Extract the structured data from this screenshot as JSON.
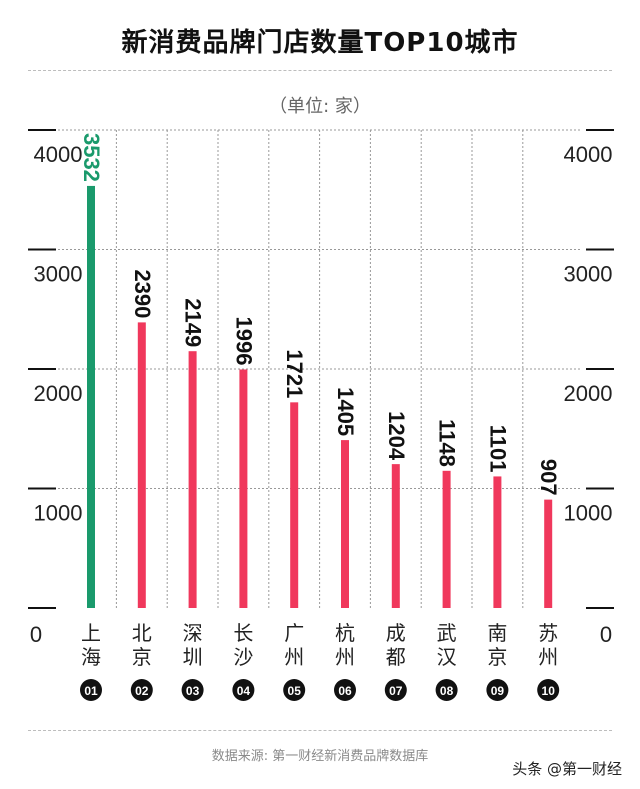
{
  "title": "新消费品牌门店数量TOP10城市",
  "unit": "（单位: 家）",
  "source": "数据来源: 第一财经新消费品牌数据库",
  "watermark": "头条 @第一财经",
  "colors": {
    "highlight": "#1a9a6c",
    "bar": "#f0385c",
    "grid": "#555555"
  },
  "chart_data": {
    "type": "bar",
    "categories": [
      "上海",
      "北京",
      "深圳",
      "长沙",
      "广州",
      "杭州",
      "成都",
      "武汉",
      "南京",
      "苏州"
    ],
    "ranks": [
      "01",
      "02",
      "03",
      "04",
      "05",
      "06",
      "07",
      "08",
      "09",
      "10"
    ],
    "values": [
      3532,
      2390,
      2149,
      1996,
      1721,
      1405,
      1204,
      1148,
      1101,
      907
    ],
    "value_labels": [
      "3532",
      "2390",
      "2149",
      "1996",
      "1721",
      "1405",
      "1204",
      "1148",
      "1101",
      "907"
    ],
    "yticks": [
      "0",
      "1000",
      "2000",
      "3000",
      "4000"
    ],
    "ylim": [
      0,
      4000
    ],
    "highlight_index": 0,
    "grid": true
  }
}
